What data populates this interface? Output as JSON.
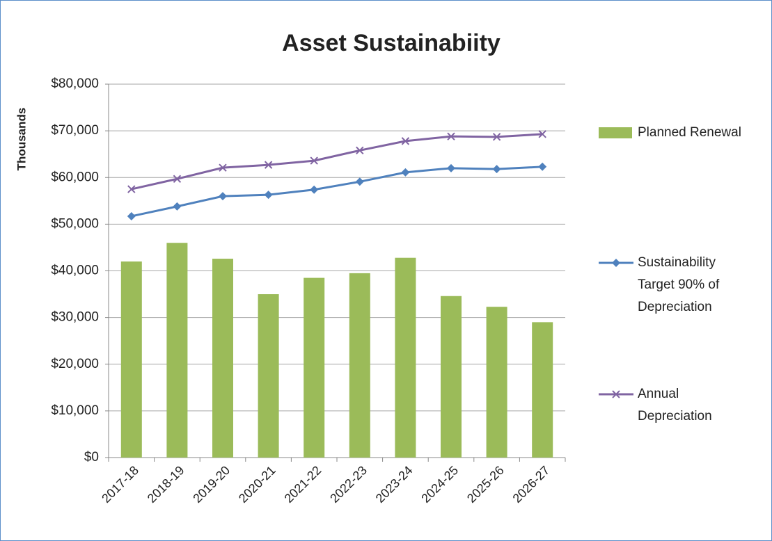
{
  "chart_data": {
    "type": "bar",
    "title": "Asset Sustainabiity",
    "y_label": "Thousands",
    "categories": [
      "2017-18",
      "2018-19",
      "2019-20",
      "2020-21",
      "2021-22",
      "2022-23",
      "2023-24",
      "2024-25",
      "2025-26",
      "2026-27"
    ],
    "series": [
      {
        "name": "Planned Renewal",
        "type": "bar",
        "color": "#9bbb59",
        "values": [
          42000,
          46000,
          42600,
          35000,
          38500,
          39500,
          42800,
          34600,
          32300,
          29000
        ]
      },
      {
        "name": "Sustainability Target 90% of Depreciation",
        "type": "line",
        "marker": "diamond",
        "color": "#4f81bd",
        "values": [
          51700,
          53800,
          56000,
          56300,
          57400,
          59100,
          61100,
          62000,
          61800,
          62300
        ]
      },
      {
        "name": "Annual Depreciation",
        "type": "line",
        "marker": "x",
        "color": "#8064a2",
        "values": [
          57500,
          59700,
          62100,
          62700,
          63600,
          65800,
          67800,
          68800,
          68700,
          69300
        ]
      }
    ],
    "ylim": [
      0,
      80000
    ],
    "yticks": [
      {
        "value": 0,
        "label": "$0"
      },
      {
        "value": 10000,
        "label": "$10,000"
      },
      {
        "value": 20000,
        "label": "$20,000"
      },
      {
        "value": 30000,
        "label": "$30,000"
      },
      {
        "value": 40000,
        "label": "$40,000"
      },
      {
        "value": 50000,
        "label": "$50,000"
      },
      {
        "value": 60000,
        "label": "$60,000"
      },
      {
        "value": 70000,
        "label": "$70,000"
      },
      {
        "value": 80000,
        "label": "$80,000"
      }
    ],
    "grid": true,
    "legend": "right"
  }
}
